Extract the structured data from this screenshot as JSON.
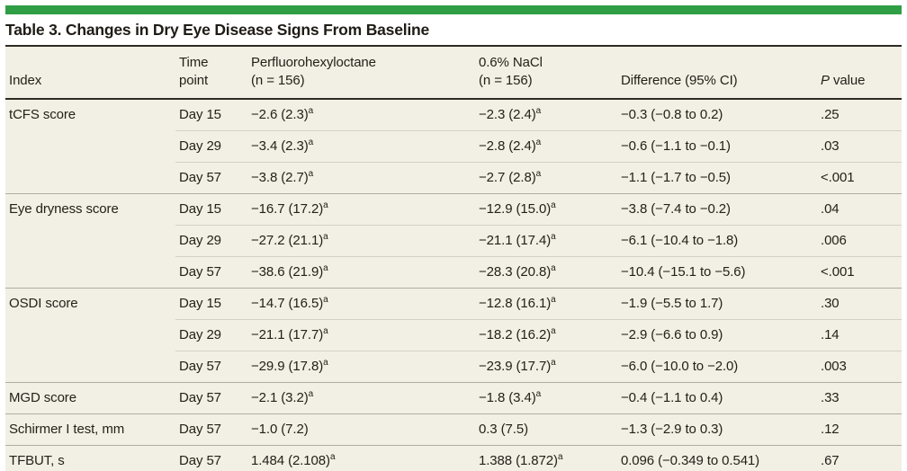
{
  "title": "Table 3. Changes in Dry Eye Disease Signs From Baseline",
  "colors": {
    "accent_green": "#2f9e44",
    "table_background": "#f2efe4",
    "dark_rule": "#2e2b26",
    "group_rule": "#b0ada0",
    "light_rule": "#d4d1c4"
  },
  "header": {
    "index": "Index",
    "time_point": "Time\npoint",
    "drug": "Perfluorohexyloctane\n(n = 156)",
    "nacl": "0.6% NaCl\n(n = 156)",
    "difference": "Difference (95% CI)",
    "p_italic": "P",
    "p_rest": " value"
  },
  "rows": [
    {
      "index": "tCFS score",
      "time": "Day 15",
      "drug": "−2.6 (2.3)",
      "drug_sup": "a",
      "nacl": "−2.3 (2.4)",
      "nacl_sup": "a",
      "diff": "−0.3 (−0.8 to 0.2)",
      "p": ".25"
    },
    {
      "index": "",
      "time": "Day 29",
      "drug": "−3.4 (2.3)",
      "drug_sup": "a",
      "nacl": "−2.8 (2.4)",
      "nacl_sup": "a",
      "diff": "−0.6 (−1.1 to −0.1)",
      "p": ".03"
    },
    {
      "index": "",
      "time": "Day 57",
      "drug": "−3.8 (2.7)",
      "drug_sup": "a",
      "nacl": "−2.7 (2.8)",
      "nacl_sup": "a",
      "diff": "−1.1 (−1.7 to −0.5)",
      "p": "<.001"
    },
    {
      "index": "Eye dryness score",
      "time": "Day 15",
      "drug": "−16.7 (17.2)",
      "drug_sup": "a",
      "nacl": "−12.9 (15.0)",
      "nacl_sup": "a",
      "diff": "−3.8 (−7.4 to −0.2)",
      "p": ".04"
    },
    {
      "index": "",
      "time": "Day 29",
      "drug": "−27.2 (21.1)",
      "drug_sup": "a",
      "nacl": "−21.1 (17.4)",
      "nacl_sup": "a",
      "diff": "−6.1 (−10.4 to −1.8)",
      "p": ".006"
    },
    {
      "index": "",
      "time": "Day 57",
      "drug": "−38.6 (21.9)",
      "drug_sup": "a",
      "nacl": "−28.3 (20.8)",
      "nacl_sup": "a",
      "diff": "−10.4 (−15.1 to −5.6)",
      "p": "<.001"
    },
    {
      "index": "OSDI score",
      "time": "Day 15",
      "drug": "−14.7 (16.5)",
      "drug_sup": "a",
      "nacl": "−12.8 (16.1)",
      "nacl_sup": "a",
      "diff": "−1.9 (−5.5 to 1.7)",
      "p": ".30"
    },
    {
      "index": "",
      "time": "Day 29",
      "drug": "−21.1 (17.7)",
      "drug_sup": "a",
      "nacl": "−18.2 (16.2)",
      "nacl_sup": "a",
      "diff": "−2.9 (−6.6 to 0.9)",
      "p": ".14"
    },
    {
      "index": "",
      "time": "Day 57",
      "drug": "−29.9 (17.8)",
      "drug_sup": "a",
      "nacl": "−23.9 (17.7)",
      "nacl_sup": "a",
      "diff": "−6.0 (−10.0 to −2.0)",
      "p": ".003"
    },
    {
      "index": "MGD score",
      "time": "Day 57",
      "drug": "−2.1 (3.2)",
      "drug_sup": "a",
      "nacl": "−1.8 (3.4)",
      "nacl_sup": "a",
      "diff": "−0.4 (−1.1 to 0.4)",
      "p": ".33"
    },
    {
      "index": "Schirmer I test, mm",
      "time": "Day 57",
      "drug": "−1.0 (7.2)",
      "drug_sup": "",
      "nacl": "0.3 (7.5)",
      "nacl_sup": "",
      "diff": "−1.3 (−2.9 to 0.3)",
      "p": ".12"
    },
    {
      "index": "TFBUT, s",
      "time": "Day 57",
      "drug": "1.484 (2.108)",
      "drug_sup": "a",
      "nacl": "1.388 (1.872)",
      "nacl_sup": "a",
      "diff": "0.096 (−0.349 to 0.541)",
      "p": ".67"
    }
  ]
}
